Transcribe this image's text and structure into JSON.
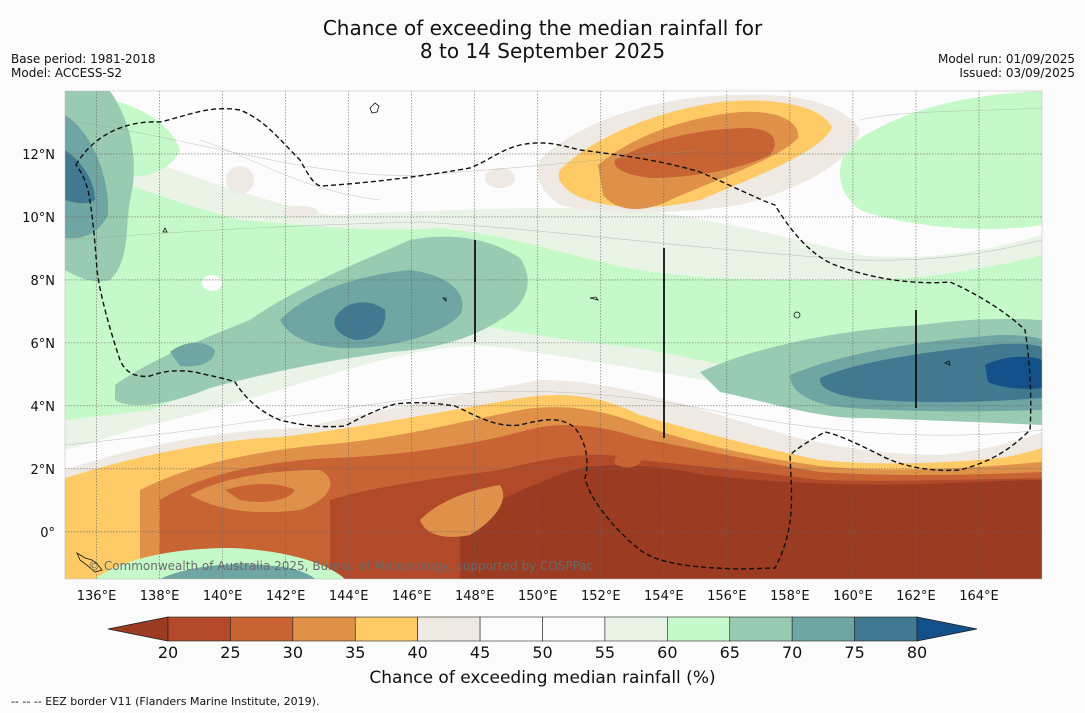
{
  "title": {
    "line1": "Chance of exceeding the median rainfall for",
    "line2": "8 to 14 September 2025"
  },
  "meta_left": {
    "base_period": "Base period: 1981-2018",
    "model": "Model: ACCESS-S2"
  },
  "meta_right": {
    "model_run": "Model run: 01/09/2025",
    "issued": "Issued: 03/09/2025"
  },
  "map": {
    "lon_labels": [
      "136°E",
      "138°E",
      "140°E",
      "142°E",
      "144°E",
      "146°E",
      "148°E",
      "150°E",
      "152°E",
      "154°E",
      "156°E",
      "158°E",
      "160°E",
      "162°E",
      "164°E"
    ],
    "lat_labels": [
      "12°N",
      "10°N",
      "8°N",
      "6°N",
      "4°N",
      "2°N",
      "0°"
    ],
    "lon_range": [
      135,
      166
    ],
    "lat_range": [
      -1.5,
      14
    ],
    "copyright": "© Commonwealth of Australia 2025, Bureau of Meteorology, supported by COSPPac"
  },
  "colorbar": {
    "ticks": [
      "20",
      "25",
      "30",
      "35",
      "40",
      "45",
      "50",
      "55",
      "60",
      "65",
      "70",
      "75",
      "80"
    ],
    "colors": [
      "#9a3b22",
      "#b24a2a",
      "#c86434",
      "#df914a",
      "#fdca66",
      "#eeeae3",
      "#fcfcfc",
      "#fcfcfc",
      "#e9f3e6",
      "#c6f9c9",
      "#98cbb2",
      "#6fa5a3",
      "#417990",
      "#145089"
    ],
    "label": "Chance of exceeding median rainfall (%)"
  },
  "footer": "--  --  -- EEZ border V11 (Flanders Marine Institute, 2019)."
}
